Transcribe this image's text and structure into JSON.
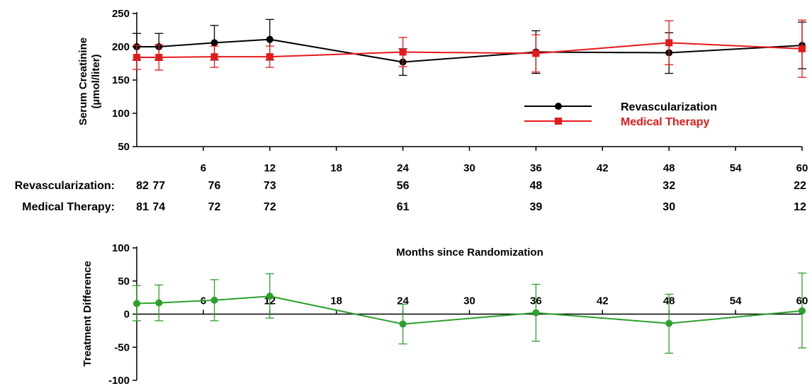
{
  "chart_data": [
    {
      "type": "line",
      "ylabel": "Serum Creatinine (µmol/liter)",
      "ylabel_lines": [
        "Serum Creatinine",
        "(µmol/liter)"
      ],
      "ylim": [
        50,
        250
      ],
      "yticks": [
        50,
        100,
        150,
        200,
        250
      ],
      "xlim": [
        0,
        60
      ],
      "xticks": [
        6,
        12,
        18,
        24,
        30,
        36,
        42,
        48,
        54,
        60
      ],
      "legend_position": "center-right",
      "series": [
        {
          "name": "Revascularization",
          "color": "#000000",
          "marker": "circle",
          "x": [
            0,
            2,
            7,
            12,
            24,
            36,
            48,
            60
          ],
          "y": [
            200,
            200,
            206,
            211,
            177,
            192,
            191,
            202
          ],
          "err_low": [
            20,
            20,
            26,
            31,
            20,
            32,
            31,
            35
          ],
          "err_high": [
            20,
            20,
            26,
            30,
            20,
            32,
            30,
            35
          ]
        },
        {
          "name": "Medical Therapy",
          "color": "#e31a1c",
          "marker": "square",
          "x": [
            0,
            2,
            7,
            12,
            24,
            36,
            48,
            60
          ],
          "y": [
            184,
            184,
            185,
            185,
            192,
            190,
            206,
            197
          ],
          "err_low": [
            18,
            19,
            16,
            16,
            22,
            28,
            33,
            43
          ],
          "err_high": [
            18,
            19,
            16,
            16,
            22,
            28,
            33,
            43
          ]
        }
      ]
    },
    {
      "type": "line",
      "ylabel": "Treatment Difference",
      "xlabel": "Months since Randomization",
      "ylim": [
        -100,
        100
      ],
      "yticks": [
        -100,
        -50,
        0,
        50,
        100
      ],
      "xlim": [
        0,
        60
      ],
      "xticks": [
        6,
        12,
        18,
        24,
        30,
        36,
        42,
        48,
        54,
        60
      ],
      "series": [
        {
          "color": "#2ca02c",
          "marker": "circle",
          "x": [
            0,
            2,
            7,
            12,
            24,
            36,
            48,
            60
          ],
          "y": [
            16,
            17,
            21,
            27,
            -15,
            2,
            -14,
            5
          ],
          "err_low": [
            26,
            27,
            31,
            33,
            30,
            43,
            45,
            56
          ],
          "err_high": [
            27,
            27,
            31,
            34,
            30,
            43,
            44,
            57
          ]
        }
      ]
    }
  ],
  "risk_table": {
    "rows": [
      {
        "label": "Revascularization:",
        "x": [
          0,
          2,
          7,
          12,
          24,
          36,
          48,
          60
        ],
        "counts": [
          "82",
          "77",
          "76",
          "73",
          "56",
          "48",
          "32",
          "22"
        ]
      },
      {
        "label": "Medical Therapy:",
        "x": [
          0,
          2,
          7,
          12,
          24,
          36,
          48,
          60
        ],
        "counts": [
          "81",
          "74",
          "72",
          "72",
          "61",
          "39",
          "30",
          "12"
        ]
      }
    ]
  }
}
